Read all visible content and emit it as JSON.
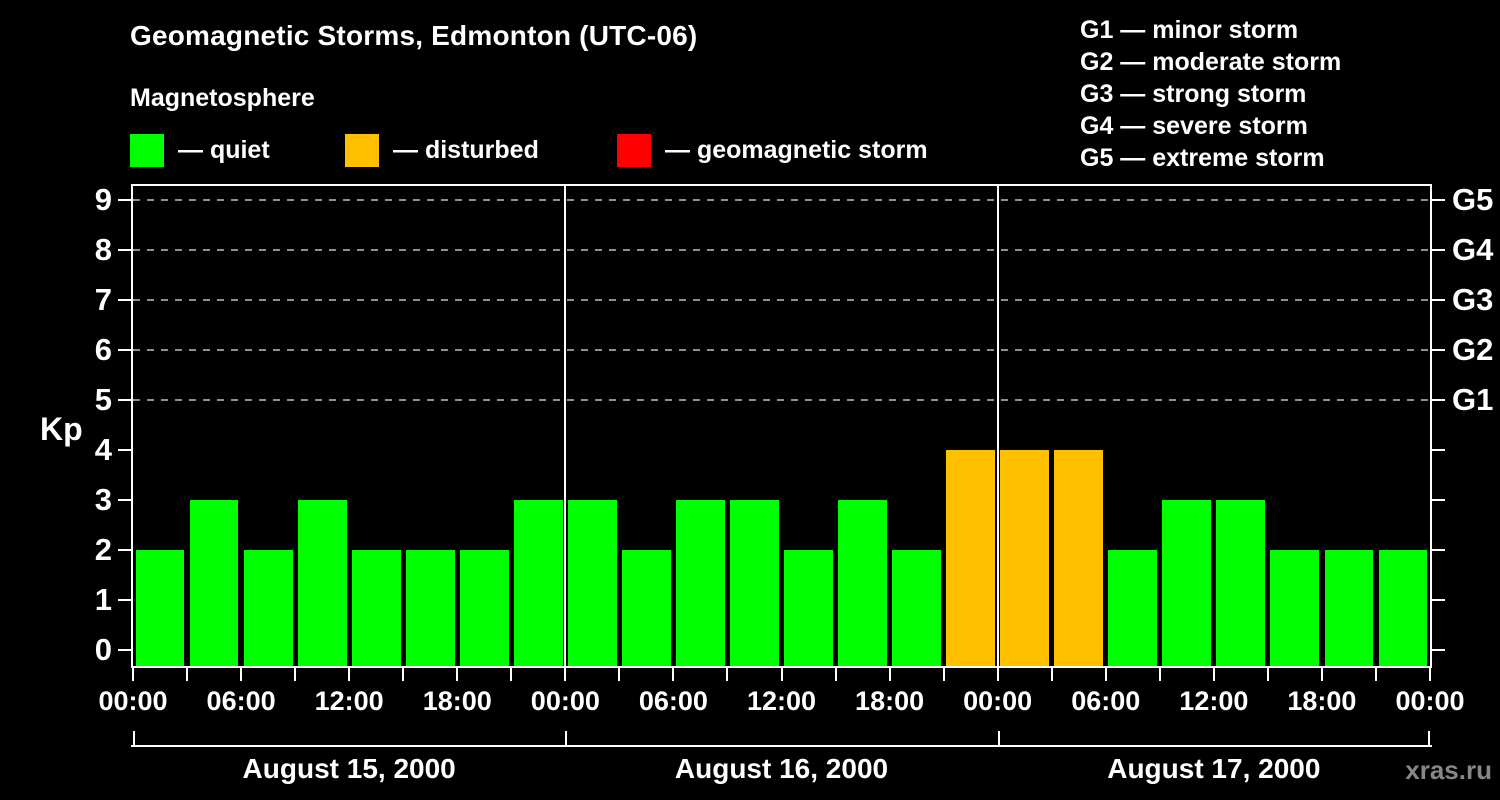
{
  "title": "Geomagnetic Storms, Edmonton (UTC-06)",
  "subtitle": "Magnetosphere",
  "legend": {
    "items": [
      {
        "label": "— quiet",
        "state": "quiet",
        "color": "#00ff00"
      },
      {
        "label": "— disturbed",
        "state": "disturbed",
        "color": "#ffc000"
      },
      {
        "label": "— geomagnetic storm",
        "state": "storm",
        "color": "#ff0000"
      }
    ]
  },
  "g_scale_legend": [
    "G1 — minor storm",
    "G2 — moderate storm",
    "G3 — strong storm",
    "G4 — severe storm",
    "G5 — extreme storm"
  ],
  "watermark": "xras.ru",
  "chart_data": {
    "type": "bar",
    "title": "Geomagnetic Storms, Edmonton (UTC-06)",
    "ylabel": "Kp",
    "ylim": [
      -0.36,
      9.32
    ],
    "y_ticks": [
      0,
      1,
      2,
      3,
      4,
      5,
      6,
      7,
      8,
      9
    ],
    "gridlines_kp": [
      5,
      6,
      7,
      8,
      9
    ],
    "grid": "dashed-horizontal",
    "right_axis": [
      {
        "label": "G1",
        "kp": 5
      },
      {
        "label": "G2",
        "kp": 6
      },
      {
        "label": "G3",
        "kp": 7
      },
      {
        "label": "G4",
        "kp": 8
      },
      {
        "label": "G5",
        "kp": 9
      }
    ],
    "bar_interval_hours": 3,
    "x_tick_interval_hours": 3,
    "x_label_interval_hours": 6,
    "x_tick_labels": [
      "00:00",
      "06:00",
      "12:00",
      "18:00",
      "00:00",
      "06:00",
      "12:00",
      "18:00",
      "00:00",
      "06:00",
      "12:00",
      "18:00",
      "00:00"
    ],
    "colors": {
      "quiet": "#00ff00",
      "disturbed": "#ffc000",
      "storm": "#ff0000"
    },
    "days": [
      {
        "date": "August 15, 2000",
        "bar_start_hours": [
          0,
          3,
          6,
          9,
          12,
          15,
          18,
          21
        ],
        "kp": [
          2,
          3,
          2,
          3,
          2,
          2,
          2,
          3
        ],
        "states": [
          "quiet",
          "quiet",
          "quiet",
          "quiet",
          "quiet",
          "quiet",
          "quiet",
          "quiet"
        ]
      },
      {
        "date": "August 16, 2000",
        "bar_start_hours": [
          0,
          3,
          6,
          9,
          12,
          15,
          18,
          21
        ],
        "kp": [
          3,
          2,
          3,
          3,
          2,
          3,
          2,
          4
        ],
        "states": [
          "quiet",
          "quiet",
          "quiet",
          "quiet",
          "quiet",
          "quiet",
          "quiet",
          "disturbed"
        ]
      },
      {
        "date": "August 17, 2000",
        "bar_start_hours": [
          0,
          3,
          6,
          9,
          12,
          15,
          18,
          21
        ],
        "kp": [
          4,
          4,
          2,
          3,
          3,
          2,
          2,
          2
        ],
        "states": [
          "disturbed",
          "disturbed",
          "quiet",
          "quiet",
          "quiet",
          "quiet",
          "quiet",
          "quiet"
        ]
      }
    ]
  }
}
